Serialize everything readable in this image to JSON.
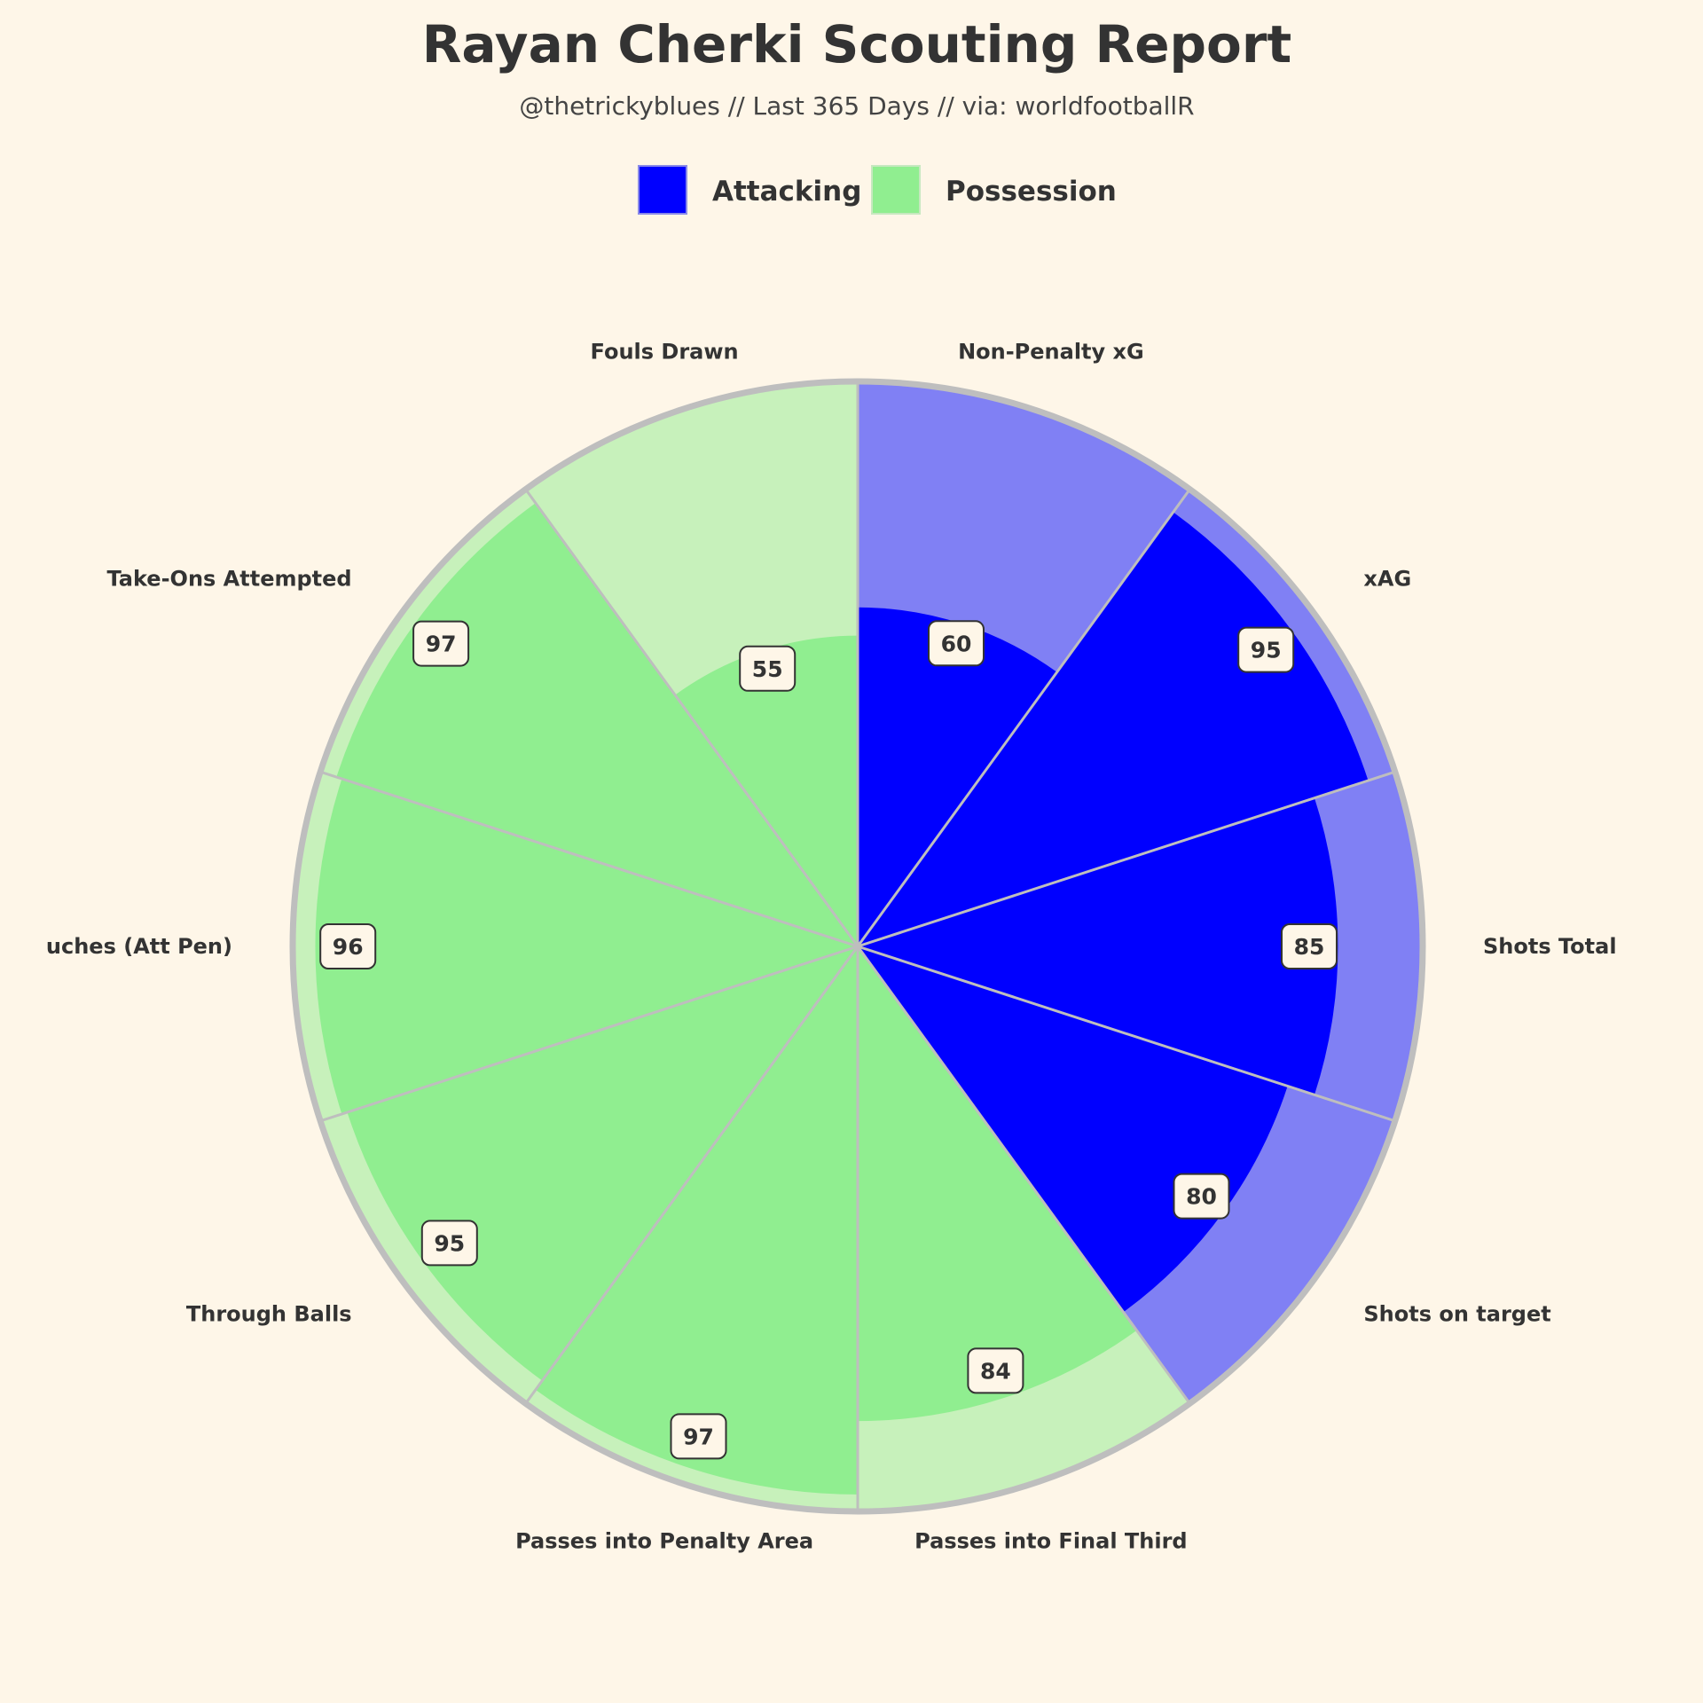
{
  "chart_data": {
    "type": "pie",
    "subtype": "pizza",
    "title": "Rayan Cherki Scouting Report",
    "subtitle": "@thetrickyblues // Last 365 Days // via: worldfootballR",
    "rlim": [
      0,
      100
    ],
    "legend": {
      "placement": "top-center",
      "entries": [
        {
          "name": "Attacking",
          "color": "#0000ff"
        },
        {
          "name": "Possession",
          "color": "#90ee90"
        }
      ]
    },
    "categories": [
      "Non-Penalty xG",
      "xAG",
      "Shots Total",
      "Shots on target",
      "Passes into Final Third",
      "Passes into Penalty Area",
      "Through Balls",
      "uches (Att Pen)",
      "Take-Ons Attempted",
      "Fouls Drawn"
    ],
    "values": [
      60,
      95,
      85,
      80,
      84,
      97,
      95,
      96,
      97,
      55
    ],
    "groups": [
      "Attacking",
      "Attacking",
      "Attacking",
      "Attacking",
      "Possession",
      "Possession",
      "Possession",
      "Possession",
      "Possession",
      "Possession"
    ],
    "colors": {
      "Attacking": {
        "value": "#0000ff",
        "background": "#8080f4"
      },
      "Possession": {
        "value": "#90ee90",
        "background": "#c7f1bb"
      },
      "slice_edge": "#bebebe",
      "value_box": "#fef6e8"
    }
  }
}
